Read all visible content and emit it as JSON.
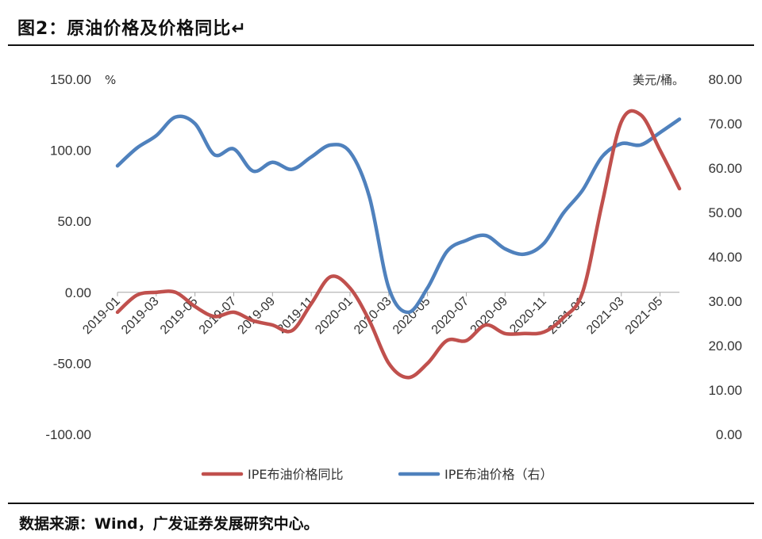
{
  "figure": {
    "title": "图2：原油价格及价格同比↵",
    "source": "数据来源：Wind，广发证券发展研究中心。"
  },
  "colors": {
    "red": "#c0504d",
    "blue": "#4f81bd"
  },
  "chart_data": {
    "type": "line",
    "left_unit": "%",
    "right_unit": "美元/桶。",
    "left_axis": {
      "min": -100,
      "max": 150,
      "ticks": [
        "150.00",
        "100.00",
        "50.00",
        "0.00",
        "-50.00",
        "-100.00"
      ]
    },
    "right_axis": {
      "min": 0,
      "max": 80,
      "ticks": [
        "80.00",
        "70.00",
        "60.00",
        "50.00",
        "40.00",
        "30.00",
        "20.00",
        "10.00",
        "0.00"
      ]
    },
    "x": [
      "2019-01",
      "2019-02",
      "2019-03",
      "2019-04",
      "2019-05",
      "2019-06",
      "2019-07",
      "2019-08",
      "2019-09",
      "2019-10",
      "2019-11",
      "2019-12",
      "2020-01",
      "2020-02",
      "2020-03",
      "2020-04",
      "2020-05",
      "2020-06",
      "2020-07",
      "2020-08",
      "2020-09",
      "2020-10",
      "2020-11",
      "2020-12",
      "2021-01",
      "2021-02",
      "2021-03",
      "2021-04",
      "2021-05",
      "2021-06"
    ],
    "x_tick_labels": [
      "2019-01",
      "2019-03",
      "2019-05",
      "2019-07",
      "2019-09",
      "2019-11",
      "2020-01",
      "2020-03",
      "2020-05",
      "2020-07",
      "2020-09",
      "2020-11",
      "2021-01",
      "2021-03",
      "2021-05"
    ],
    "grid": false,
    "legend_position": "bottom",
    "series": [
      {
        "name": "IPE布油价格同比",
        "axis": "left",
        "color": "#c0504d",
        "values": [
          -14,
          -2,
          0,
          0,
          -10,
          -17,
          -14,
          -20,
          -23,
          -27,
          -8,
          11,
          3,
          -20,
          -50,
          -60,
          -50,
          -34,
          -34,
          -23,
          -29,
          -29,
          -28,
          -18,
          0,
          62,
          120,
          125,
          100,
          73
        ]
      },
      {
        "name": "IPE布油价格（右）",
        "axis": "right",
        "color": "#4f81bd",
        "values": [
          60.5,
          64.5,
          67.3,
          71.5,
          70.0,
          63.0,
          64.3,
          59.3,
          61.3,
          59.7,
          62.5,
          65.2,
          63.6,
          53.5,
          33.0,
          27.5,
          33.0,
          41.2,
          43.7,
          44.8,
          41.8,
          40.6,
          43.0,
          49.8,
          55.0,
          62.5,
          65.5,
          65.2,
          68.0,
          71.0
        ]
      }
    ]
  }
}
